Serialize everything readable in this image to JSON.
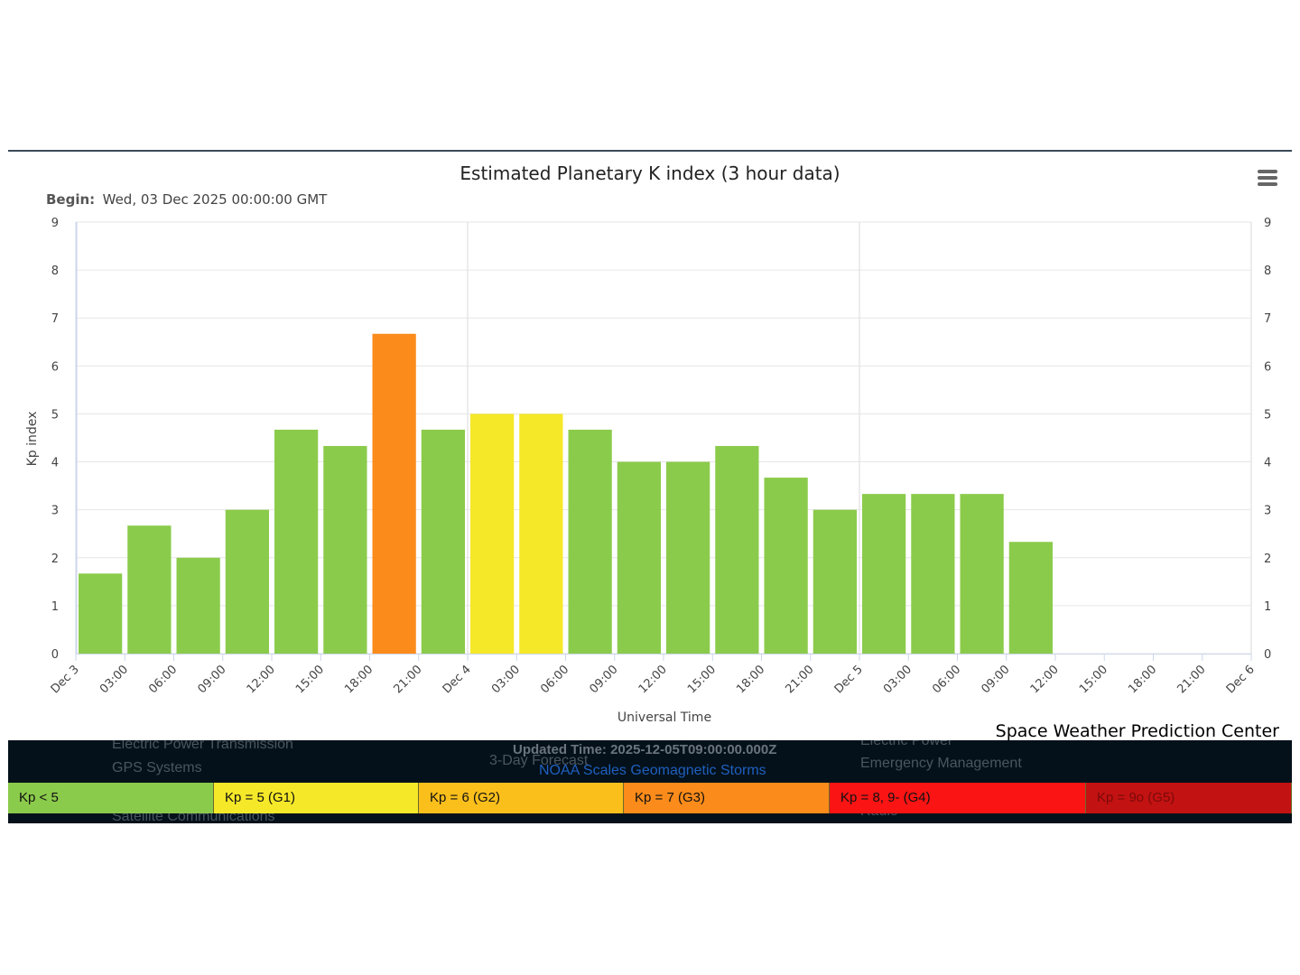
{
  "chart_data": {
    "type": "bar",
    "title": "Estimated Planetary K index (3 hour data)",
    "subtitle_label": "Begin:",
    "subtitle_value": "Wed, 03 Dec 2025 00:00:00 GMT",
    "xlabel": "Universal Time",
    "ylabel": "Kp index",
    "ylim": [
      0,
      9
    ],
    "yticks": [
      "0",
      "1",
      "2",
      "3",
      "4",
      "5",
      "6",
      "7",
      "8",
      "9"
    ],
    "xtick_labels": [
      "Dec 3",
      "03:00",
      "06:00",
      "09:00",
      "12:00",
      "15:00",
      "18:00",
      "21:00",
      "Dec 4",
      "03:00",
      "06:00",
      "09:00",
      "12:00",
      "15:00",
      "18:00",
      "21:00",
      "Dec 5",
      "03:00",
      "06:00",
      "09:00",
      "12:00",
      "15:00",
      "18:00",
      "21:00",
      "Dec 6"
    ],
    "values": [
      1.67,
      2.67,
      2.0,
      3.0,
      4.67,
      4.33,
      6.67,
      4.67,
      5.0,
      5.0,
      4.67,
      4.0,
      4.0,
      4.33,
      3.67,
      3.0,
      3.33,
      3.33,
      3.33,
      2.33
    ],
    "grid": true,
    "colors": {
      "below_5": "#8bcb4b",
      "g1": "#f5e828",
      "g2": "#fbbf1c",
      "g3": "#fb8b1a",
      "g4": "#fa1414",
      "g5": "#c31212"
    },
    "credit": "Space Weather Prediction Center"
  },
  "menu": {
    "icon": "hamburger-menu-icon"
  },
  "legend_bar": [
    {
      "label": "Kp < 5",
      "color": "#8bcb4b",
      "text_color": "#111111"
    },
    {
      "label": "Kp = 5 (G1)",
      "color": "#f5e828",
      "text_color": "#111111"
    },
    {
      "label": "Kp = 6 (G2)",
      "color": "#fbbf1c",
      "text_color": "#111111"
    },
    {
      "label": "Kp = 7 (G3)",
      "color": "#fb8b1a",
      "text_color": "#111111"
    },
    {
      "label": "Kp = 8, 9- (G4)",
      "color": "#fa1414",
      "text_color": "#111111"
    },
    {
      "label": "Kp = 9o (G5)",
      "color": "#c31212",
      "text_color": "#7a0a0a"
    }
  ],
  "background_text": {
    "electric_power_transmission": "Electric Power Transmission",
    "gps_systems": "GPS Systems",
    "satellite_communications": "Satellite Communications",
    "updated_time": "Updated Time: 2025-12-05T09:00:00.000Z",
    "three_day_forecast": "3-Day Forecast",
    "noaa_scales": "NOAA Scales Geomagnetic Storms",
    "electric_power": "Electric Power",
    "emergency_management": "Emergency Management",
    "radio": "Radio"
  }
}
